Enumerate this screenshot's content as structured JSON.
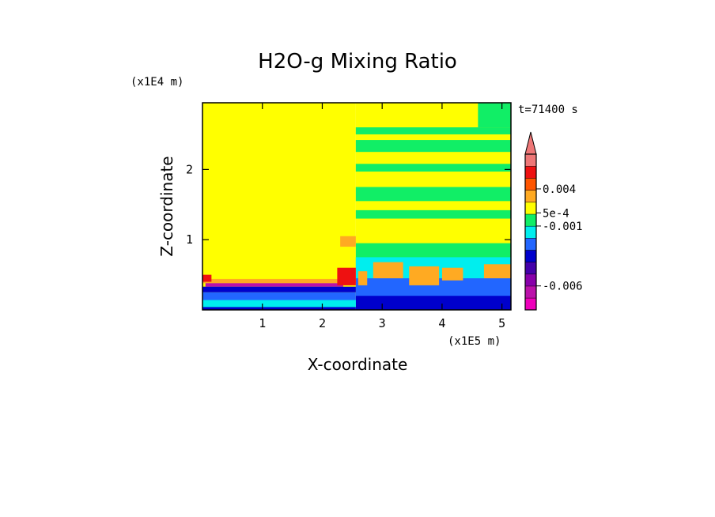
{
  "chart_data": {
    "type": "heatmap",
    "title": "H2O-g Mixing Ratio",
    "xlabel": "X-coordinate",
    "ylabel": "Z-coordinate",
    "x_scale_label": "(x1E5 m)",
    "y_scale_label": "(x1E4 m)",
    "time_label": "t=71400 s",
    "xlim": [
      0,
      5.15
    ],
    "ylim": [
      0,
      2.95
    ],
    "x_ticks": [
      1,
      2,
      3,
      4,
      5
    ],
    "x_tick_labels": [
      "1",
      "2",
      "3",
      "4",
      "5"
    ],
    "y_ticks": [
      1,
      2
    ],
    "y_tick_labels": [
      "1",
      "2"
    ],
    "colorbar": {
      "levels": 13,
      "colors": [
        "#ee00bb",
        "#bb11aa",
        "#8800aa",
        "#4400aa",
        "#0000cc",
        "#2266ff",
        "#00eeee",
        "#11ee66",
        "#ffff00",
        "#ffaa22",
        "#ff5500",
        "#ee1111",
        "#ee7777"
      ],
      "tick_labels": [
        {
          "label": "-0.006",
          "level": 2
        },
        {
          "label": "-0.001",
          "level": 7
        },
        {
          "label": "5e-4",
          "level": 8.1
        },
        {
          "label": "0.004",
          "level": 10.1
        }
      ],
      "extend": "max"
    },
    "regions": [
      {
        "x0": 0,
        "x1": 2.56,
        "y0": 0,
        "y1": 2.95,
        "color": "#ffff00"
      },
      {
        "x0": 2.56,
        "x1": 5.15,
        "y0": 0,
        "y1": 2.95,
        "color": "#ffff00"
      },
      {
        "x0": 2.56,
        "x1": 5.15,
        "y0": 2.25,
        "y1": 2.42,
        "color": "#11ee66"
      },
      {
        "x0": 2.56,
        "x1": 5.15,
        "y0": 2.5,
        "y1": 2.6,
        "color": "#11ee66"
      },
      {
        "x0": 2.56,
        "x1": 5.15,
        "y0": 1.97,
        "y1": 2.08,
        "color": "#11ee66"
      },
      {
        "x0": 2.56,
        "x1": 5.15,
        "y0": 1.55,
        "y1": 1.75,
        "color": "#11ee66"
      },
      {
        "x0": 2.56,
        "x1": 5.15,
        "y0": 1.3,
        "y1": 1.42,
        "color": "#11ee66"
      },
      {
        "x0": 4.6,
        "x1": 5.15,
        "y0": 2.6,
        "y1": 2.95,
        "color": "#11ee66"
      },
      {
        "x0": 2.56,
        "x1": 5.15,
        "y0": 0.6,
        "y1": 0.95,
        "color": "#11ee66"
      },
      {
        "x0": 2.56,
        "x1": 5.15,
        "y0": 0.25,
        "y1": 0.75,
        "color": "#00eeee"
      },
      {
        "x0": 2.56,
        "x1": 5.15,
        "y0": 0.05,
        "y1": 0.45,
        "color": "#2266ff"
      },
      {
        "x0": 2.56,
        "x1": 5.15,
        "y0": 0,
        "y1": 0.2,
        "color": "#0000cc"
      },
      {
        "x0": 2.6,
        "x1": 2.75,
        "y0": 0.35,
        "y1": 0.55,
        "color": "#ffaa22"
      },
      {
        "x0": 2.85,
        "x1": 3.35,
        "y0": 0.45,
        "y1": 0.68,
        "color": "#ffaa22"
      },
      {
        "x0": 3.45,
        "x1": 3.95,
        "y0": 0.35,
        "y1": 0.62,
        "color": "#ffaa22"
      },
      {
        "x0": 4.0,
        "x1": 4.35,
        "y0": 0.42,
        "y1": 0.6,
        "color": "#ffaa22"
      },
      {
        "x0": 4.7,
        "x1": 5.15,
        "y0": 0.45,
        "y1": 0.65,
        "color": "#ffaa22"
      },
      {
        "x0": 0,
        "x1": 2.56,
        "y0": 0.38,
        "y1": 0.44,
        "color": "#ffaa22"
      },
      {
        "x0": 0,
        "x1": 0.15,
        "y0": 0.4,
        "y1": 0.5,
        "color": "#ee1111"
      },
      {
        "x0": 0.05,
        "x1": 2.35,
        "y0": 0.33,
        "y1": 0.38,
        "color": "#bb11aa"
      },
      {
        "x0": 2.25,
        "x1": 2.56,
        "y0": 0.35,
        "y1": 0.6,
        "color": "#ee1111"
      },
      {
        "x0": 2.3,
        "x1": 2.56,
        "y0": 0.9,
        "y1": 1.05,
        "color": "#ffaa22"
      },
      {
        "x0": 0,
        "x1": 2.56,
        "y0": 0.25,
        "y1": 0.33,
        "color": "#0000cc"
      },
      {
        "x0": 0,
        "x1": 2.56,
        "y0": 0.08,
        "y1": 0.25,
        "color": "#2266ff"
      },
      {
        "x0": 0,
        "x1": 2.56,
        "y0": 0.02,
        "y1": 0.14,
        "color": "#00eeee"
      },
      {
        "x0": 0,
        "x1": 2.56,
        "y0": 0,
        "y1": 0.04,
        "color": "#0000cc"
      }
    ]
  }
}
